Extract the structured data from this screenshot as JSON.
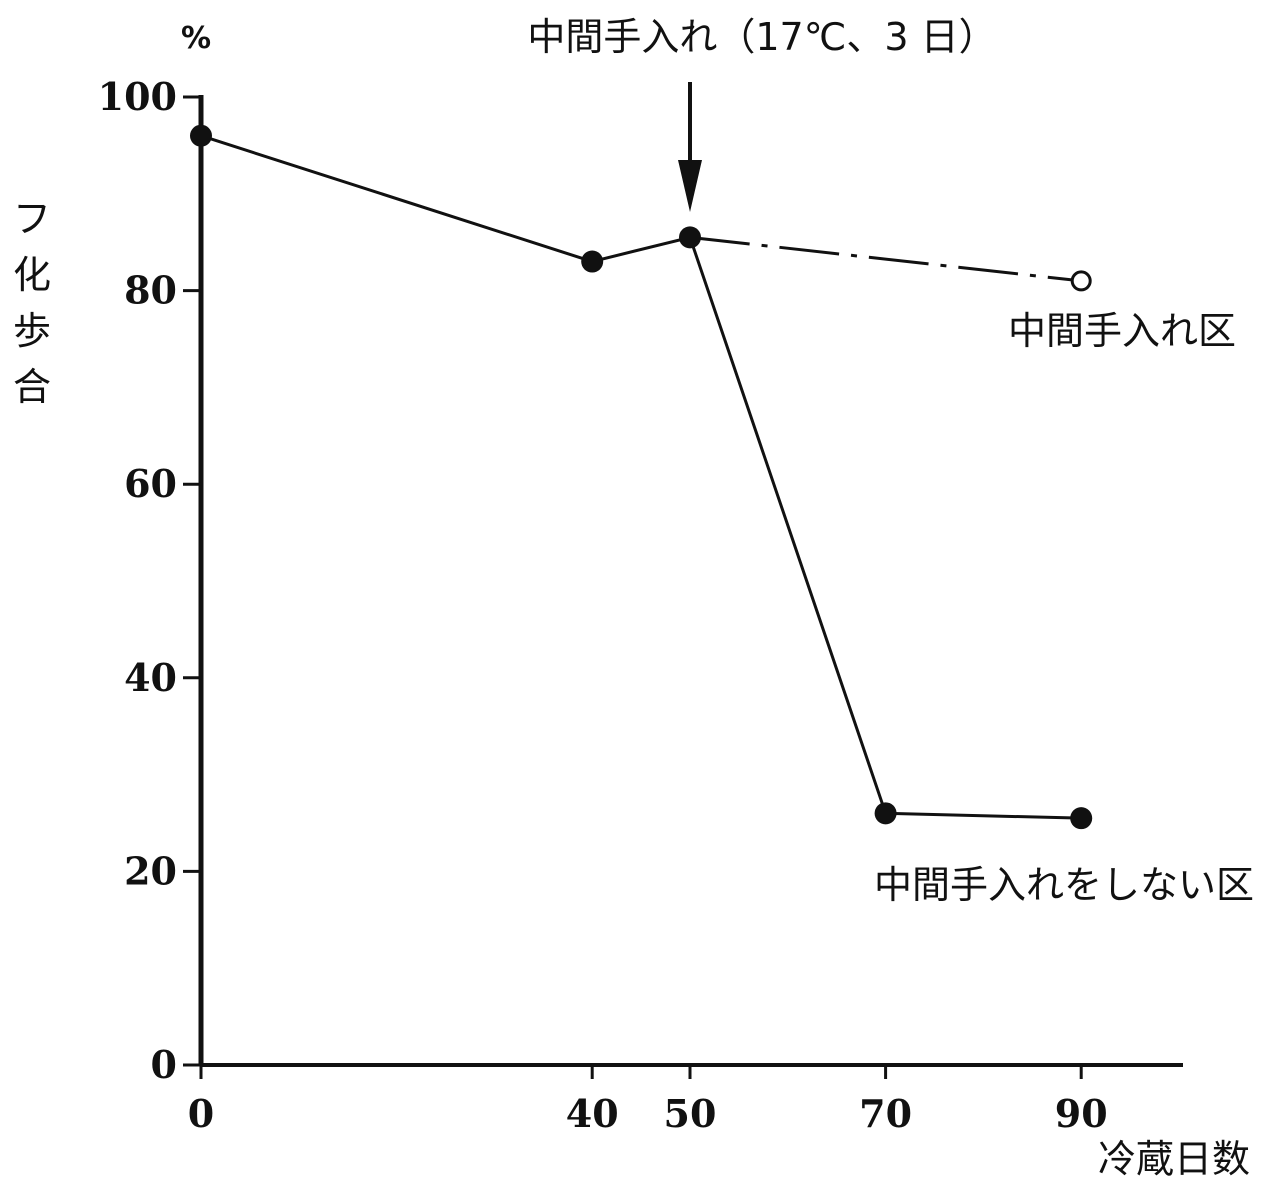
{
  "chart_data": {
    "type": "line",
    "title": "",
    "ylabel": "フ化歩合",
    "yunit": "%",
    "xlabel": "冷蔵日数",
    "xlim": [
      0,
      100
    ],
    "ylim": [
      0,
      100
    ],
    "x_ticks": [
      0,
      40,
      50,
      70,
      90
    ],
    "x_tick_labels": [
      "0",
      "40",
      "50",
      "70",
      "90"
    ],
    "y_ticks": [
      0,
      20,
      40,
      60,
      80,
      100
    ],
    "y_tick_labels": [
      "0",
      "20",
      "40",
      "60",
      "80",
      "100"
    ],
    "grid": false,
    "series": [
      {
        "name": "中間手入れ区",
        "line_style": "dash-dot",
        "marker": "open-circle",
        "points": [
          [
            0,
            96
          ],
          [
            40,
            83
          ],
          [
            50,
            85.5
          ],
          [
            90,
            81
          ]
        ]
      },
      {
        "name": "中間手入れをしない区",
        "line_style": "solid",
        "marker": "filled-circle",
        "points": [
          [
            0,
            96
          ],
          [
            40,
            83
          ],
          [
            50,
            85.5
          ],
          [
            70,
            26
          ],
          [
            90,
            25.5
          ]
        ]
      }
    ],
    "annotations": [
      {
        "text": "中間手入れ（17℃、3 日）",
        "x": 50,
        "arrow": "down"
      }
    ]
  }
}
